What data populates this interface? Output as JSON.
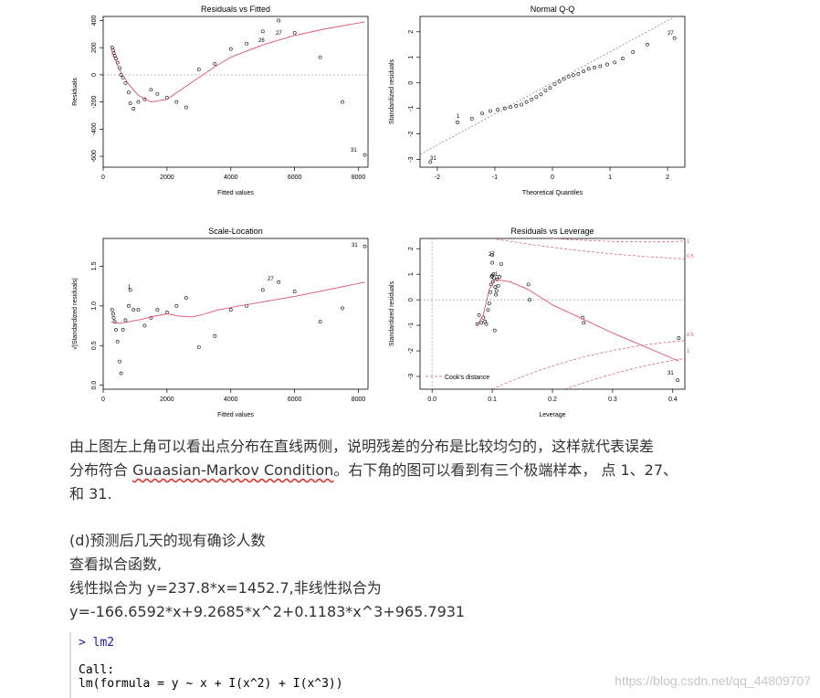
{
  "figure": {
    "panels": [
      {
        "title": "Residuals vs Fitted",
        "xlabel": "Fitted values",
        "ylabel": "Residuals",
        "xticks": [
          "0",
          "2000",
          "4000",
          "6000",
          "8000"
        ],
        "yticks": [
          "-600",
          "-400",
          "-200",
          "0",
          "200",
          "400"
        ],
        "point_labels": [
          "27",
          "26",
          "31"
        ]
      },
      {
        "title": "Normal Q-Q",
        "xlabel": "Theoretical Quantiles",
        "ylabel": "Standardized residuals",
        "xticks": [
          "-2",
          "-1",
          "0",
          "1",
          "2"
        ],
        "yticks": [
          "-3",
          "-2",
          "-1",
          "0",
          "1",
          "2"
        ],
        "point_labels": [
          "27",
          "1",
          "31"
        ]
      },
      {
        "title": "Scale-Location",
        "xlabel": "Fitted values",
        "ylabel": "√|Standardized residuals|",
        "xticks": [
          "0",
          "2000",
          "4000",
          "6000",
          "8000"
        ],
        "yticks": [
          "0.0",
          "0.5",
          "1.0",
          "1.5"
        ],
        "point_labels": [
          "31",
          "27",
          "1"
        ]
      },
      {
        "title": "Residuals vs Leverage",
        "xlabel": "Leverage",
        "ylabel": "Standardized residuals",
        "xticks": [
          "0.0",
          "0.1",
          "0.2",
          "0.3",
          "0.4"
        ],
        "yticks": [
          "-3",
          "-2",
          "-1",
          "0",
          "1",
          "2"
        ],
        "point_labels": [
          "27",
          "1",
          "31"
        ],
        "legend": "Cook's distance",
        "contour_labels": [
          "1",
          "0.5",
          "0.5",
          "1"
        ]
      }
    ]
  },
  "chart_data": [
    {
      "type": "scatter",
      "title": "Residuals vs Fitted",
      "xlabel": "Fitted values",
      "ylabel": "Residuals",
      "xlim": [
        0,
        8300
      ],
      "ylim": [
        -680,
        430
      ],
      "points": [
        [
          280,
          200
        ],
        [
          310,
          180
        ],
        [
          330,
          160
        ],
        [
          360,
          140
        ],
        [
          400,
          120
        ],
        [
          450,
          90
        ],
        [
          520,
          50
        ],
        [
          560,
          0
        ],
        [
          620,
          -20
        ],
        [
          700,
          -60
        ],
        [
          800,
          -130
        ],
        [
          850,
          -210
        ],
        [
          950,
          -250
        ],
        [
          1100,
          -200
        ],
        [
          1300,
          -180
        ],
        [
          1500,
          -110
        ],
        [
          1700,
          -140
        ],
        [
          2000,
          -170
        ],
        [
          2300,
          -200
        ],
        [
          2600,
          -240
        ],
        [
          3000,
          40
        ],
        [
          3500,
          80
        ],
        [
          4000,
          190
        ],
        [
          4500,
          230
        ],
        [
          5000,
          320
        ],
        [
          5500,
          400
        ],
        [
          6000,
          310
        ],
        [
          6800,
          130
        ],
        [
          7500,
          -200
        ],
        [
          8200,
          -590
        ]
      ],
      "smooth": [
        [
          250,
          190
        ],
        [
          500,
          40
        ],
        [
          800,
          -70
        ],
        [
          1100,
          -150
        ],
        [
          1500,
          -200
        ],
        [
          2000,
          -180
        ],
        [
          2500,
          -100
        ],
        [
          3000,
          -20
        ],
        [
          3500,
          60
        ],
        [
          4000,
          130
        ],
        [
          5000,
          220
        ],
        [
          6000,
          290
        ],
        [
          7000,
          340
        ],
        [
          8200,
          390
        ]
      ],
      "refline_y": 0
    },
    {
      "type": "scatter",
      "title": "Normal Q-Q",
      "xlabel": "Theoretical Quantiles",
      "ylabel": "Standardized residuals",
      "xlim": [
        -2.3,
        2.3
      ],
      "ylim": [
        -3.3,
        2.6
      ],
      "points": [
        [
          -2.12,
          -3.1
        ],
        [
          -1.65,
          -1.55
        ],
        [
          -1.4,
          -1.4
        ],
        [
          -1.22,
          -1.2
        ],
        [
          -1.08,
          -1.1
        ],
        [
          -0.95,
          -1.05
        ],
        [
          -0.83,
          -1.0
        ],
        [
          -0.73,
          -0.95
        ],
        [
          -0.63,
          -0.9
        ],
        [
          -0.54,
          -0.85
        ],
        [
          -0.45,
          -0.75
        ],
        [
          -0.36,
          -0.65
        ],
        [
          -0.28,
          -0.55
        ],
        [
          -0.2,
          -0.45
        ],
        [
          -0.12,
          -0.3
        ],
        [
          -0.04,
          -0.2
        ],
        [
          0.04,
          -0.05
        ],
        [
          0.12,
          0.05
        ],
        [
          0.2,
          0.15
        ],
        [
          0.28,
          0.25
        ],
        [
          0.36,
          0.3
        ],
        [
          0.45,
          0.35
        ],
        [
          0.54,
          0.45
        ],
        [
          0.63,
          0.55
        ],
        [
          0.73,
          0.6
        ],
        [
          0.83,
          0.65
        ],
        [
          0.95,
          0.72
        ],
        [
          1.08,
          0.8
        ],
        [
          1.22,
          0.95
        ],
        [
          1.4,
          1.2
        ],
        [
          1.65,
          1.5
        ],
        [
          2.12,
          1.75
        ]
      ],
      "refline": [
        [
          -2.3,
          -2.8
        ],
        [
          2.3,
          2.8
        ]
      ]
    },
    {
      "type": "scatter",
      "title": "Scale-Location",
      "xlabel": "Fitted values",
      "ylabel": "√|Standardized residuals|",
      "xlim": [
        0,
        8300
      ],
      "ylim": [
        -0.05,
        1.85
      ],
      "points": [
        [
          280,
          0.95
        ],
        [
          310,
          0.9
        ],
        [
          330,
          0.85
        ],
        [
          360,
          0.8
        ],
        [
          400,
          0.7
        ],
        [
          450,
          0.55
        ],
        [
          520,
          0.3
        ],
        [
          560,
          0.15
        ],
        [
          620,
          0.7
        ],
        [
          700,
          0.82
        ],
        [
          800,
          1.0
        ],
        [
          850,
          1.2
        ],
        [
          950,
          0.95
        ],
        [
          1100,
          0.95
        ],
        [
          1300,
          0.75
        ],
        [
          1500,
          0.85
        ],
        [
          1700,
          0.95
        ],
        [
          2000,
          0.92
        ],
        [
          2300,
          1.0
        ],
        [
          2600,
          1.1
        ],
        [
          3000,
          0.48
        ],
        [
          3500,
          0.62
        ],
        [
          4000,
          0.95
        ],
        [
          4500,
          1.0
        ],
        [
          5000,
          1.2
        ],
        [
          5500,
          1.3
        ],
        [
          6000,
          1.18
        ],
        [
          6800,
          0.8
        ],
        [
          7500,
          0.97
        ],
        [
          8200,
          1.75
        ]
      ],
      "smooth": [
        [
          250,
          0.8
        ],
        [
          500,
          0.78
        ],
        [
          800,
          0.8
        ],
        [
          1200,
          0.83
        ],
        [
          1600,
          0.87
        ],
        [
          2000,
          0.9
        ],
        [
          2400,
          0.87
        ],
        [
          2800,
          0.86
        ],
        [
          3200,
          0.9
        ],
        [
          3600,
          0.95
        ],
        [
          4000,
          0.98
        ],
        [
          5000,
          1.05
        ],
        [
          6000,
          1.12
        ],
        [
          7000,
          1.2
        ],
        [
          8200,
          1.3
        ]
      ]
    },
    {
      "type": "scatter",
      "title": "Residuals vs Leverage",
      "xlabel": "Leverage",
      "ylabel": "Standardized residuals",
      "xlim": [
        -0.02,
        0.42
      ],
      "ylim": [
        -3.5,
        2.4
      ],
      "points": [
        [
          0.075,
          -0.95
        ],
        [
          0.078,
          -0.6
        ],
        [
          0.082,
          -0.9
        ],
        [
          0.085,
          -0.7
        ],
        [
          0.088,
          -0.85
        ],
        [
          0.09,
          -0.95
        ],
        [
          0.093,
          -0.4
        ],
        [
          0.095,
          -0.15
        ],
        [
          0.097,
          0.3
        ],
        [
          0.098,
          0.6
        ],
        [
          0.099,
          0.9
        ],
        [
          0.1,
          0.95
        ],
        [
          0.101,
          0.7
        ],
        [
          0.102,
          1.0
        ],
        [
          0.103,
          0.85
        ],
        [
          0.104,
          -1.2
        ],
        [
          0.105,
          0.5
        ],
        [
          0.106,
          0.2
        ],
        [
          0.107,
          0.35
        ],
        [
          0.108,
          0.8
        ],
        [
          0.11,
          0.55
        ],
        [
          0.112,
          0.9
        ],
        [
          0.115,
          1.4
        ],
        [
          0.1,
          1.75
        ],
        [
          0.1,
          1.45
        ],
        [
          0.16,
          0.6
        ],
        [
          0.162,
          0.0
        ],
        [
          0.25,
          -0.7
        ],
        [
          0.252,
          -0.9
        ],
        [
          0.41,
          -1.5
        ],
        [
          0.408,
          -3.15
        ]
      ],
      "smooth": [
        [
          0.075,
          -1.0
        ],
        [
          0.085,
          -0.6
        ],
        [
          0.095,
          0.4
        ],
        [
          0.105,
          0.8
        ],
        [
          0.13,
          0.7
        ],
        [
          0.16,
          0.4
        ],
        [
          0.2,
          -0.2
        ],
        [
          0.25,
          -0.75
        ],
        [
          0.3,
          -1.3
        ],
        [
          0.35,
          -1.8
        ],
        [
          0.41,
          -2.4
        ]
      ],
      "cooks_distance": true
    }
  ],
  "paragraph1": {
    "line1": "由上图左上角可以看出点分布在直线两侧，说明残差的分布是比较均匀的，这样就代表误差",
    "line2_pre": "分布符合 ",
    "line2_link": "Guaasian-Markov Condition",
    "line2_post": "。右下角的图可以看到有三个极端样本， 点 1、27、",
    "line3": "和 31."
  },
  "paragraph2": {
    "line1": "(d)预测后几天的现有确诊人数",
    "line2": "查看拟合函数,",
    "line3": "线性拟合为 y=237.8*x=1452.7,非线性拟合为",
    "line4": "y=-166.6592*x+9.2685*x^2+0.1183*x^3+965.7931"
  },
  "code": {
    "prompt": "> lm2",
    "line2": "Call:",
    "line3": "lm(formula = y ~ x + I(x^2) + I(x^3))"
  },
  "watermark": "https://blog.csdn.net/qq_44809707",
  "colors": {
    "smooth": "#df536b",
    "text": "#333333",
    "code_prompt": "#0000ff"
  }
}
